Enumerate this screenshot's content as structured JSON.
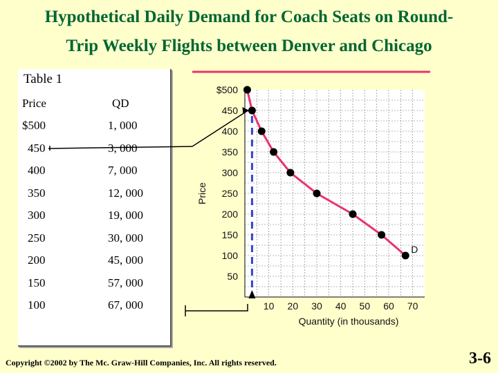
{
  "title_line1": "Hypothetical Daily Demand for Coach Seats on Round-",
  "title_line2": "Trip Weekly Flights between Denver and Chicago",
  "table": {
    "title": "Table 1",
    "col_price": "Price",
    "col_qd": "QD",
    "rows": [
      {
        "price": "$500",
        "qd": "1, 000"
      },
      {
        "price": "450",
        "qd": "3, 000"
      },
      {
        "price": "400",
        "qd": "7, 000"
      },
      {
        "price": "350",
        "qd": "12, 000"
      },
      {
        "price": "300",
        "qd": "19, 000"
      },
      {
        "price": "250",
        "qd": "30, 000"
      },
      {
        "price": "200",
        "qd": "45, 000"
      },
      {
        "price": "150",
        "qd": "57, 000"
      },
      {
        "price": "100",
        "qd": "67, 000"
      }
    ]
  },
  "chart_data": {
    "type": "line",
    "xlabel": "Quantity (in thousands)",
    "ylabel": "Price",
    "xlim": [
      0,
      75
    ],
    "ylim": [
      0,
      500
    ],
    "x_ticks": [
      "10",
      "20",
      "30",
      "40",
      "50",
      "60",
      "70"
    ],
    "y_ticks": [
      "$500",
      "450",
      "400",
      "350",
      "300",
      "250",
      "200",
      "150",
      "100",
      "50"
    ],
    "grid": true,
    "series": [
      {
        "name": "D",
        "x": [
          1,
          3,
          7,
          12,
          19,
          30,
          45,
          57,
          67
        ],
        "y": [
          500,
          450,
          400,
          350,
          300,
          250,
          200,
          150,
          100
        ]
      }
    ],
    "highlight_point": {
      "x": 3,
      "y": 450
    },
    "colors": {
      "line": "#e8336e",
      "points": "#000000",
      "dashed": "#3344cc",
      "connector": "#000000"
    }
  },
  "copyright": "Copyright ©2002 by The Mc. Graw-Hill Companies, Inc. All rights reserved.",
  "slide_number": "3-6"
}
